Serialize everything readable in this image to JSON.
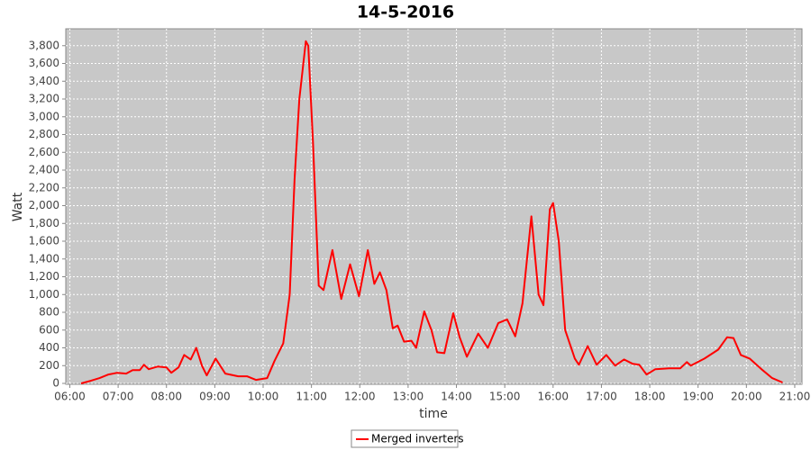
{
  "chart_data": {
    "type": "line",
    "title": "14-5-2016",
    "xlabel": "time",
    "ylabel": "Watt",
    "x": [
      "06:14",
      "06:26",
      "06:37",
      "06:48",
      "06:59",
      "07:10",
      "07:18",
      "07:27",
      "07:32",
      "07:38",
      "07:49",
      "08:00",
      "08:06",
      "08:15",
      "08:22",
      "08:30",
      "08:37",
      "08:44",
      "08:50",
      "09:01",
      "09:13",
      "09:29",
      "09:40",
      "09:51",
      "10:05",
      "10:14",
      "10:25",
      "10:33",
      "10:39",
      "10:45",
      "10:53",
      "10:56",
      "11:02",
      "11:09",
      "11:15",
      "11:26",
      "11:37",
      "11:48",
      "11:59",
      "12:10",
      "12:18",
      "12:25",
      "12:33",
      "12:41",
      "12:47",
      "12:55",
      "13:04",
      "13:10",
      "13:20",
      "13:29",
      "13:36",
      "13:45",
      "13:56",
      "14:04",
      "14:13",
      "14:27",
      "14:39",
      "14:52",
      "15:03",
      "15:13",
      "15:22",
      "15:33",
      "15:42",
      "15:48",
      "15:56",
      "16:00",
      "16:07",
      "16:15",
      "16:27",
      "16:32",
      "16:43",
      "16:54",
      "17:06",
      "17:17",
      "17:28",
      "17:39",
      "17:47",
      "17:56",
      "18:07",
      "18:24",
      "18:38",
      "18:46",
      "18:51",
      "19:08",
      "19:25",
      "19:36",
      "19:44",
      "19:53",
      "20:04",
      "20:20",
      "20:32",
      "20:45"
    ],
    "series": [
      {
        "name": "Merged inverters",
        "color": "#ff0000",
        "values": [
          0,
          30,
          60,
          100,
          120,
          110,
          150,
          150,
          210,
          160,
          190,
          180,
          120,
          180,
          320,
          270,
          400,
          200,
          90,
          280,
          110,
          80,
          80,
          40,
          60,
          250,
          450,
          1000,
          2300,
          3200,
          3850,
          3800,
          2700,
          1100,
          1050,
          1500,
          950,
          1340,
          980,
          1500,
          1120,
          1250,
          1050,
          620,
          650,
          470,
          480,
          400,
          810,
          600,
          350,
          340,
          790,
          520,
          300,
          560,
          400,
          680,
          720,
          530,
          900,
          1880,
          1000,
          880,
          1960,
          2030,
          1600,
          600,
          280,
          210,
          420,
          210,
          320,
          200,
          270,
          220,
          210,
          100,
          160,
          170,
          170,
          240,
          200,
          280,
          380,
          520,
          510,
          320,
          280,
          150,
          60,
          10
        ]
      }
    ],
    "xlim": [
      "05:55",
      "21:09"
    ],
    "xticks": [
      "06:00",
      "07:00",
      "08:00",
      "09:00",
      "10:00",
      "11:00",
      "12:00",
      "13:00",
      "14:00",
      "15:00",
      "16:00",
      "17:00",
      "18:00",
      "19:00",
      "20:00",
      "21:00"
    ],
    "ylim": [
      -10,
      3990
    ],
    "yticks": [
      0,
      200,
      400,
      600,
      800,
      {
        "value": 1000,
        "label": "1,000"
      },
      {
        "value": 1200,
        "label": "1,200"
      },
      {
        "value": 1400,
        "label": "1,400"
      },
      {
        "value": 1600,
        "label": "1,600"
      },
      {
        "value": 1800,
        "label": "1,800"
      },
      {
        "value": 2000,
        "label": "2,000"
      },
      {
        "value": 2200,
        "label": "2,200"
      },
      {
        "value": 2400,
        "label": "2,400"
      },
      {
        "value": 2600,
        "label": "2,600"
      },
      {
        "value": 2800,
        "label": "2,800"
      },
      {
        "value": 3000,
        "label": "3,000"
      },
      {
        "value": 3200,
        "label": "3,200"
      },
      {
        "value": 3400,
        "label": "3,400"
      },
      {
        "value": 3600,
        "label": "3,600"
      },
      {
        "value": 3800,
        "label": "3,800"
      }
    ],
    "grid": true,
    "legend": "bottom"
  }
}
